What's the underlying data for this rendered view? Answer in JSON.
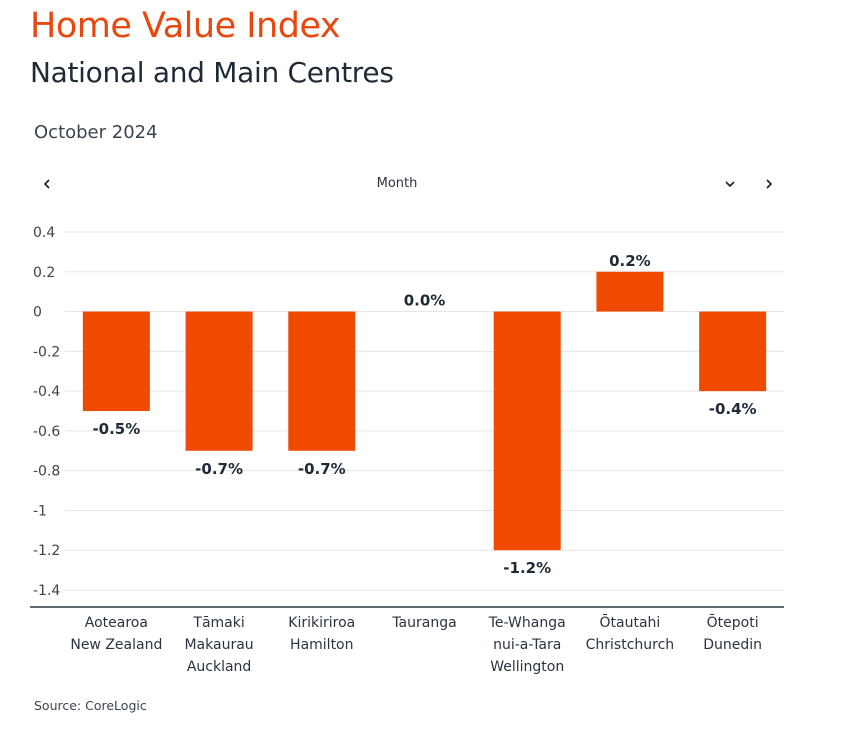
{
  "header": {
    "title": "Home Value Index",
    "subtitle": "National and Main Centres",
    "period": "October 2024"
  },
  "controls": {
    "period_select_label": "Month",
    "prev_icon": "chevron-left-icon",
    "dropdown_icon": "chevron-down-icon",
    "next_icon": "chevron-right-icon"
  },
  "colors": {
    "accent": "#e8480e",
    "bar": "#f04a00",
    "text": "#1e2a36",
    "grid": "#e6e6e6",
    "axis": "#2b3640"
  },
  "chart_data": {
    "type": "bar",
    "categories": [
      [
        "Aotearoa",
        "New Zealand"
      ],
      [
        "Tāmaki",
        "Makaurau",
        "Auckland"
      ],
      [
        "Kirikiriroa",
        "Hamilton"
      ],
      [
        "Tauranga"
      ],
      [
        "Te-Whanga",
        "nui-a-Tara",
        "Wellington"
      ],
      [
        "Ōtautahi",
        "Christchurch"
      ],
      [
        "Ōtepoti",
        "Dunedin"
      ]
    ],
    "values": [
      -0.5,
      -0.7,
      -0.7,
      0.0,
      -1.2,
      0.2,
      -0.4
    ],
    "data_labels": [
      "-0.5%",
      "-0.7%",
      "-0.7%",
      "0.0%",
      "-1.2%",
      "0.2%",
      "-0.4%"
    ],
    "y_ticks": [
      0.4,
      0.2,
      0,
      -0.2,
      -0.4,
      -0.6,
      -0.8,
      -1,
      -1.2,
      -1.4
    ],
    "y_tick_labels": [
      "0.4",
      "0.2",
      "0",
      "-0.2",
      "-0.4",
      "-0.6",
      "-0.8",
      "-1",
      "-1.2",
      "-1.4"
    ],
    "ylim": [
      -1.4,
      0.4
    ],
    "grid": true,
    "legend": "none"
  },
  "footer": {
    "source": "Source: CoreLogic"
  }
}
